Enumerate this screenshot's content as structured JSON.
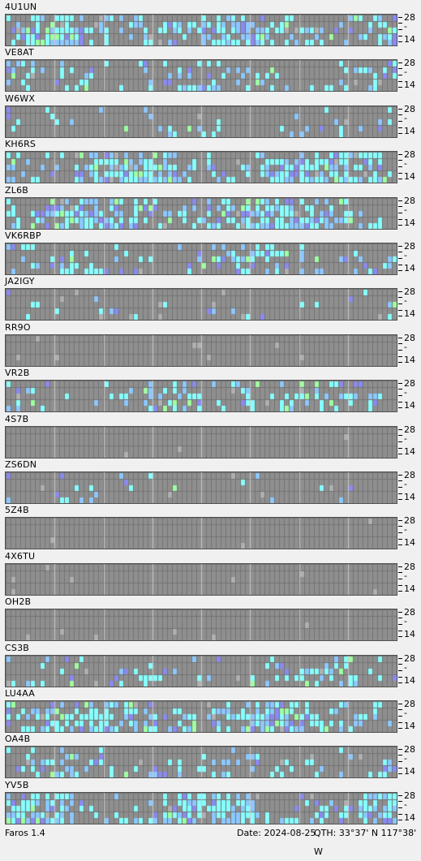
{
  "app": {
    "version": "Faros 1.4"
  },
  "status": {
    "date": "Date: 2024-08-25",
    "qth": "QTH: 33°37' N  117°38' W"
  },
  "band_labels": {
    "top": "28",
    "mid": "-",
    "bottom": "14"
  },
  "colors": {
    "panel": "#7a7a7a",
    "cell_empty": "#8f8f8f",
    "cell_gap": "#737373",
    "hour_line": "#c8c8c8",
    "marker": "#b0b0b0",
    "weak": "#8a8af0",
    "medium": "#8cc8ff",
    "strong": "#88ffff",
    "very_strong": "#a0ffa0"
  },
  "stations": [
    {
      "name": "4U1UN",
      "activity": "high"
    },
    {
      "name": "VE8AT",
      "activity": "medium"
    },
    {
      "name": "W6WX",
      "activity": "low"
    },
    {
      "name": "KH6RS",
      "activity": "high"
    },
    {
      "name": "ZL6B",
      "activity": "high"
    },
    {
      "name": "VK6RBP",
      "activity": "medium"
    },
    {
      "name": "JA2IGY",
      "activity": "low"
    },
    {
      "name": "RR9O",
      "activity": "none"
    },
    {
      "name": "VR2B",
      "activity": "medium"
    },
    {
      "name": "4S7B",
      "activity": "none"
    },
    {
      "name": "ZS6DN",
      "activity": "low"
    },
    {
      "name": "5Z4B",
      "activity": "none"
    },
    {
      "name": "4X6TU",
      "activity": "none"
    },
    {
      "name": "OH2B",
      "activity": "none"
    },
    {
      "name": "CS3B",
      "activity": "medium"
    },
    {
      "name": "LU4AA",
      "activity": "high"
    },
    {
      "name": "OA4B",
      "activity": "medium"
    },
    {
      "name": "YV5B",
      "activity": "high"
    }
  ]
}
